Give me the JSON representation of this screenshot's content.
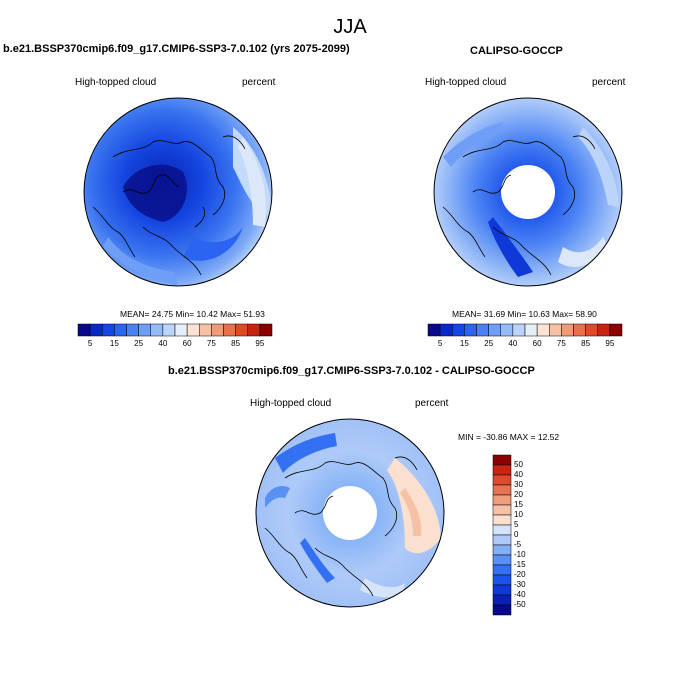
{
  "title": "JJA",
  "panels": [
    {
      "title": "b.e21.BSSP370cmip6.f09_g17.CMIP6-SSP3-7.0.102 (yrs 2075-2099)",
      "variable": "High-topped cloud",
      "units": "percent",
      "stats": {
        "mean": "24.75",
        "min": "10.42",
        "max": "51.93",
        "text": "MEAN=  24.75  Min=  10.42  Max=  51.93"
      }
    },
    {
      "title": "CALIPSO-GOCCP",
      "variable": "High-topped cloud",
      "units": "percent",
      "stats": {
        "mean": "31.69",
        "min": "10.63",
        "max": "58.90",
        "text": "MEAN=  31.69  Min=  10.63  Max=  58.90"
      }
    },
    {
      "title": "b.e21.BSSP370cmip6.f09_g17.CMIP6-SSP3-7.0.102 - CALIPSO-GOCCP",
      "variable": "High-topped cloud",
      "units": "percent",
      "stats": {
        "min": "-30.86",
        "max": "12.52",
        "text": "MIN = -30.86 MAX =  12.52"
      }
    }
  ],
  "colorbar_abs": {
    "colors": [
      "#08088a",
      "#0a28c8",
      "#1446e6",
      "#2a64f0",
      "#4a82f4",
      "#6e9ef6",
      "#96baf8",
      "#bcd4fa",
      "#e6eef8",
      "#fbe2d2",
      "#f6c0a4",
      "#f09a76",
      "#e8704c",
      "#de4a28",
      "#c42410",
      "#8a0000"
    ],
    "tick_labels": [
      "5",
      "15",
      "25",
      "40",
      "60",
      "75",
      "85",
      "95"
    ]
  },
  "colorbar_diff": {
    "colors": [
      "#08088a",
      "#0a20b4",
      "#1038d6",
      "#1c52ec",
      "#3470f2",
      "#5890f4",
      "#82b0f6",
      "#aecaf8",
      "#d6e4fa",
      "#fbe0d0",
      "#f6c2a6",
      "#f09e7c",
      "#e87252",
      "#de4a2c",
      "#c82414",
      "#8a0000"
    ],
    "labels": [
      "50",
      "40",
      "30",
      "20",
      "15",
      "10",
      "5",
      "0",
      "-5",
      "-10",
      "-15",
      "-20",
      "-30",
      "-40",
      "-50"
    ]
  }
}
